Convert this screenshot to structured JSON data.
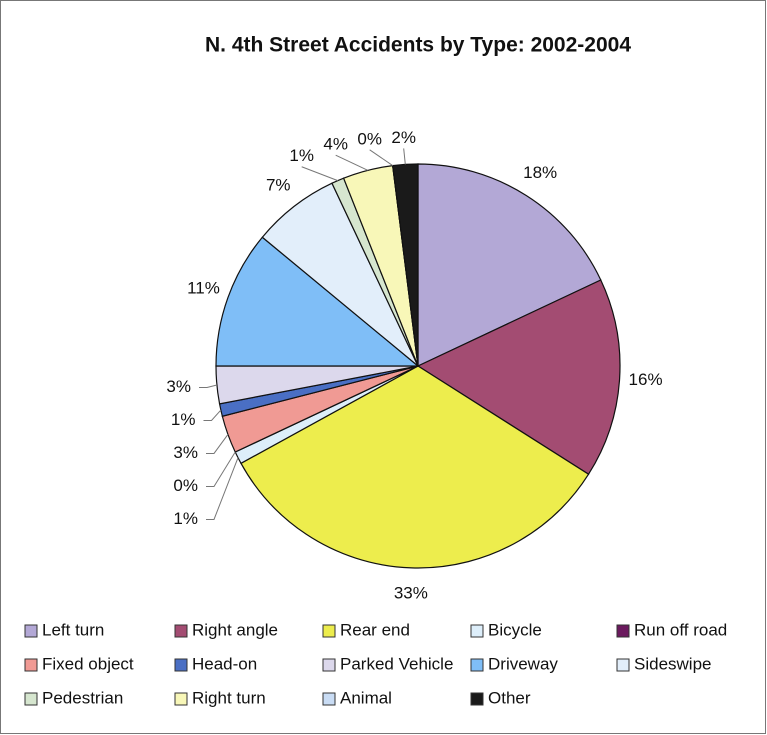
{
  "chart_data": {
    "type": "pie",
    "title": "N. 4th Street Accidents by Type: 2002-2004",
    "categories": [
      "Left turn",
      "Right angle",
      "Rear end",
      "Bicycle",
      "Run off road",
      "Fixed object",
      "Head-on",
      "Parked Vehicle",
      "Driveway",
      "Sideswipe",
      "Pedestrian",
      "Right turn",
      "Animal",
      "Other"
    ],
    "values": [
      18,
      16,
      33,
      1,
      0,
      3,
      1,
      3,
      11,
      7,
      1,
      4,
      0,
      2
    ],
    "value_labels": [
      "18%",
      "16%",
      "33%",
      "1%",
      "0%",
      "3%",
      "1%",
      "3%",
      "11%",
      "7%",
      "1%",
      "4%",
      "0%",
      "2%"
    ],
    "colors": [
      "#b3a8d6",
      "#a34c72",
      "#eded4d",
      "#ddeefa",
      "#6b1a5e",
      "#f09a94",
      "#4a6fc4",
      "#dcd8ec",
      "#7fbef7",
      "#e2eefa",
      "#d6e6cf",
      "#f8f7b8",
      "#c9dcf4",
      "#1a1a1a"
    ],
    "legend": "bottom"
  }
}
